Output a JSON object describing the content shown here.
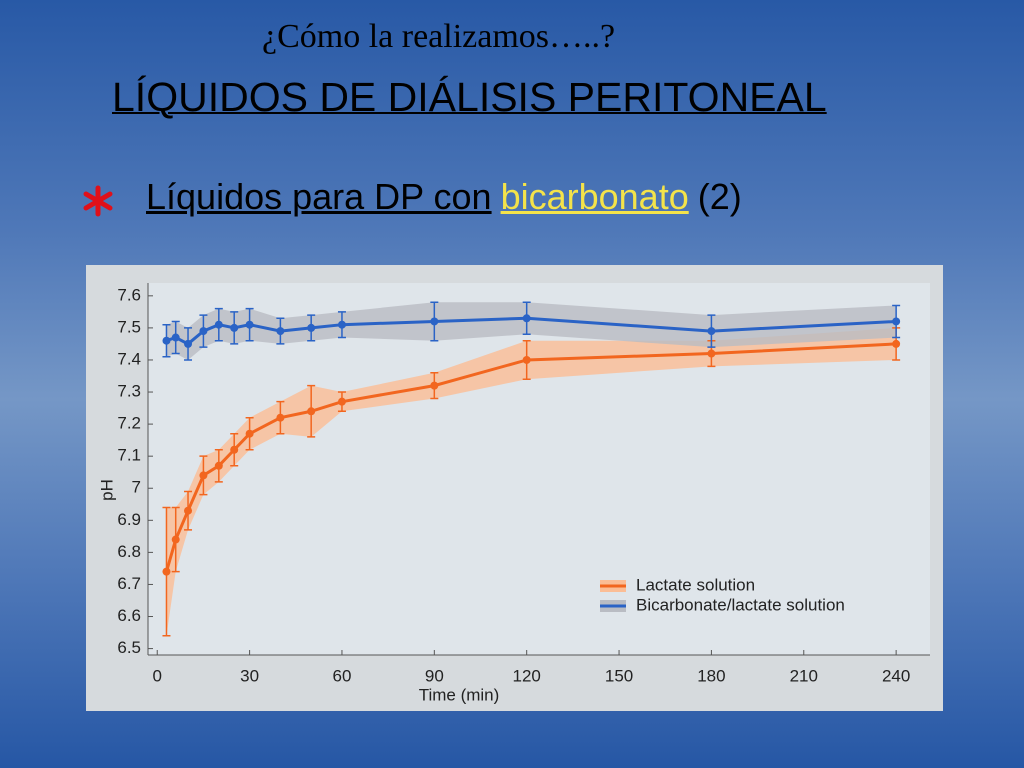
{
  "slide": {
    "kicker": "¿Cómo la realizamos…..?",
    "title": "LÍQUIDOS DE DIÁLISIS PERITONEAL",
    "bullet": {
      "text": "Líquidos para DP con",
      "highlight": "bicarbonato",
      "suffix": "(2)"
    }
  },
  "chart_data": {
    "type": "line",
    "xlabel": "Time (min)",
    "ylabel": "pH",
    "x": [
      3,
      6,
      10,
      15,
      20,
      25,
      30,
      40,
      50,
      60,
      90,
      120,
      180,
      240
    ],
    "series": [
      {
        "name": "Lactate solution",
        "color": "#f2661f",
        "band_color": "#fbbd95",
        "values": [
          6.74,
          6.84,
          6.93,
          7.04,
          7.07,
          7.12,
          7.17,
          7.22,
          7.24,
          7.27,
          7.32,
          7.4,
          7.42,
          7.45
        ],
        "errors": [
          0.2,
          0.1,
          0.06,
          0.06,
          0.05,
          0.05,
          0.05,
          0.05,
          0.08,
          0.03,
          0.04,
          0.06,
          0.04,
          0.05
        ]
      },
      {
        "name": "Bicarbonate/lactate solution",
        "color": "#2a63c6",
        "band_color": "#b9bcc3",
        "values": [
          7.46,
          7.47,
          7.45,
          7.49,
          7.51,
          7.5,
          7.51,
          7.49,
          7.5,
          7.51,
          7.52,
          7.53,
          7.49,
          7.52
        ],
        "errors": [
          0.05,
          0.05,
          0.05,
          0.05,
          0.05,
          0.05,
          0.05,
          0.04,
          0.04,
          0.04,
          0.06,
          0.05,
          0.05,
          0.05
        ]
      }
    ],
    "xlim": [
      -3,
      251
    ],
    "ylim": [
      6.48,
      7.64
    ],
    "xticks": [
      0,
      30,
      60,
      90,
      120,
      150,
      180,
      210,
      240
    ],
    "yticks": [
      6.5,
      6.6,
      6.7,
      6.8,
      6.9,
      7,
      7.1,
      7.2,
      7.3,
      7.4,
      7.5,
      7.6
    ],
    "grid": false,
    "legend": "lower-right"
  }
}
